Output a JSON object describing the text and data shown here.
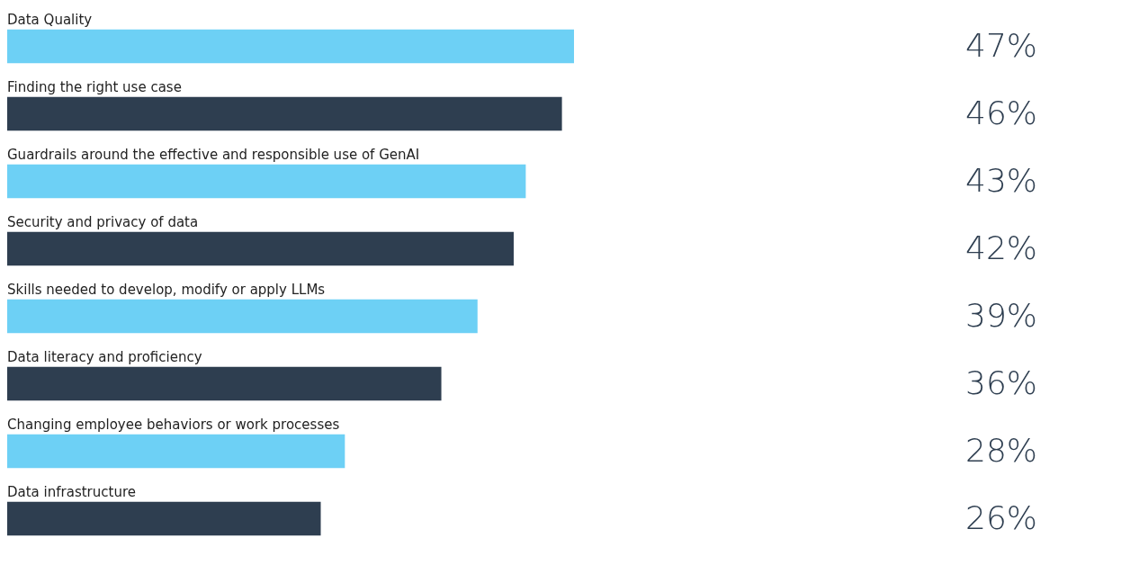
{
  "chart_data": {
    "type": "bar",
    "orientation": "horizontal",
    "value_labels": [
      "47%",
      "46%",
      "43%",
      "42%",
      "39%",
      "36%",
      "28%",
      "26%"
    ],
    "categories": [
      "Data Quality",
      "Finding the right use case",
      "Guardrails around the effective and responsible use of GenAI",
      "Security and privacy of data",
      "Skills needed to develop, modify or apply LLMs",
      "Data literacy and proficiency",
      "Changing employee behaviors or work processes",
      "Data infrastructure"
    ],
    "values": [
      47,
      46,
      43,
      42,
      39,
      36,
      28,
      26
    ],
    "colors": [
      "#6dd0f5",
      "#2e3e50",
      "#6dd0f5",
      "#2e3e50",
      "#6dd0f5",
      "#2e3e50",
      "#6dd0f5",
      "#2e3e50"
    ]
  }
}
